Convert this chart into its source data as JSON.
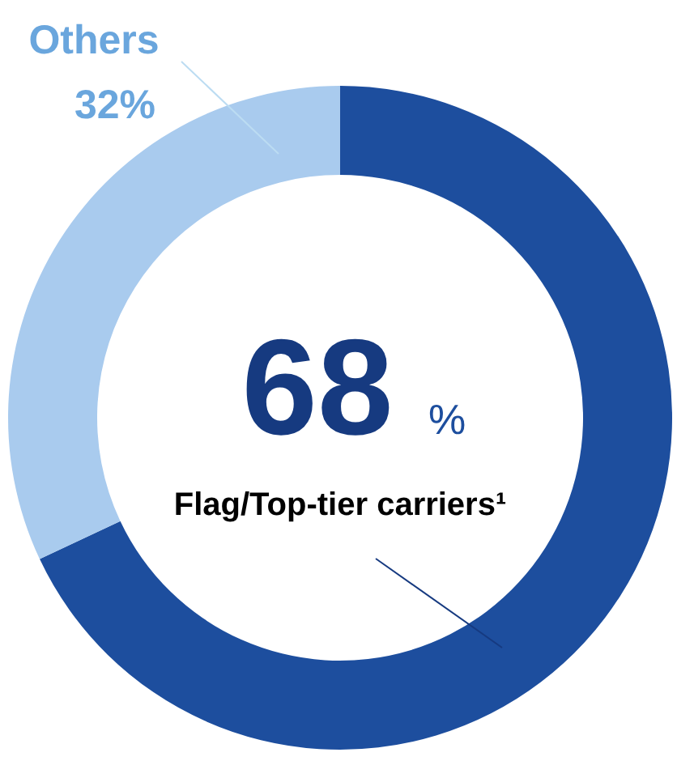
{
  "chart_data": {
    "type": "donut",
    "categories": [
      "Flag/Top-tier carriers¹",
      "Others"
    ],
    "values": [
      68,
      32
    ],
    "colors": [
      "#1d4e9e",
      "#a9cbee"
    ],
    "value_labels": [
      "68 %",
      "32%"
    ]
  }
}
